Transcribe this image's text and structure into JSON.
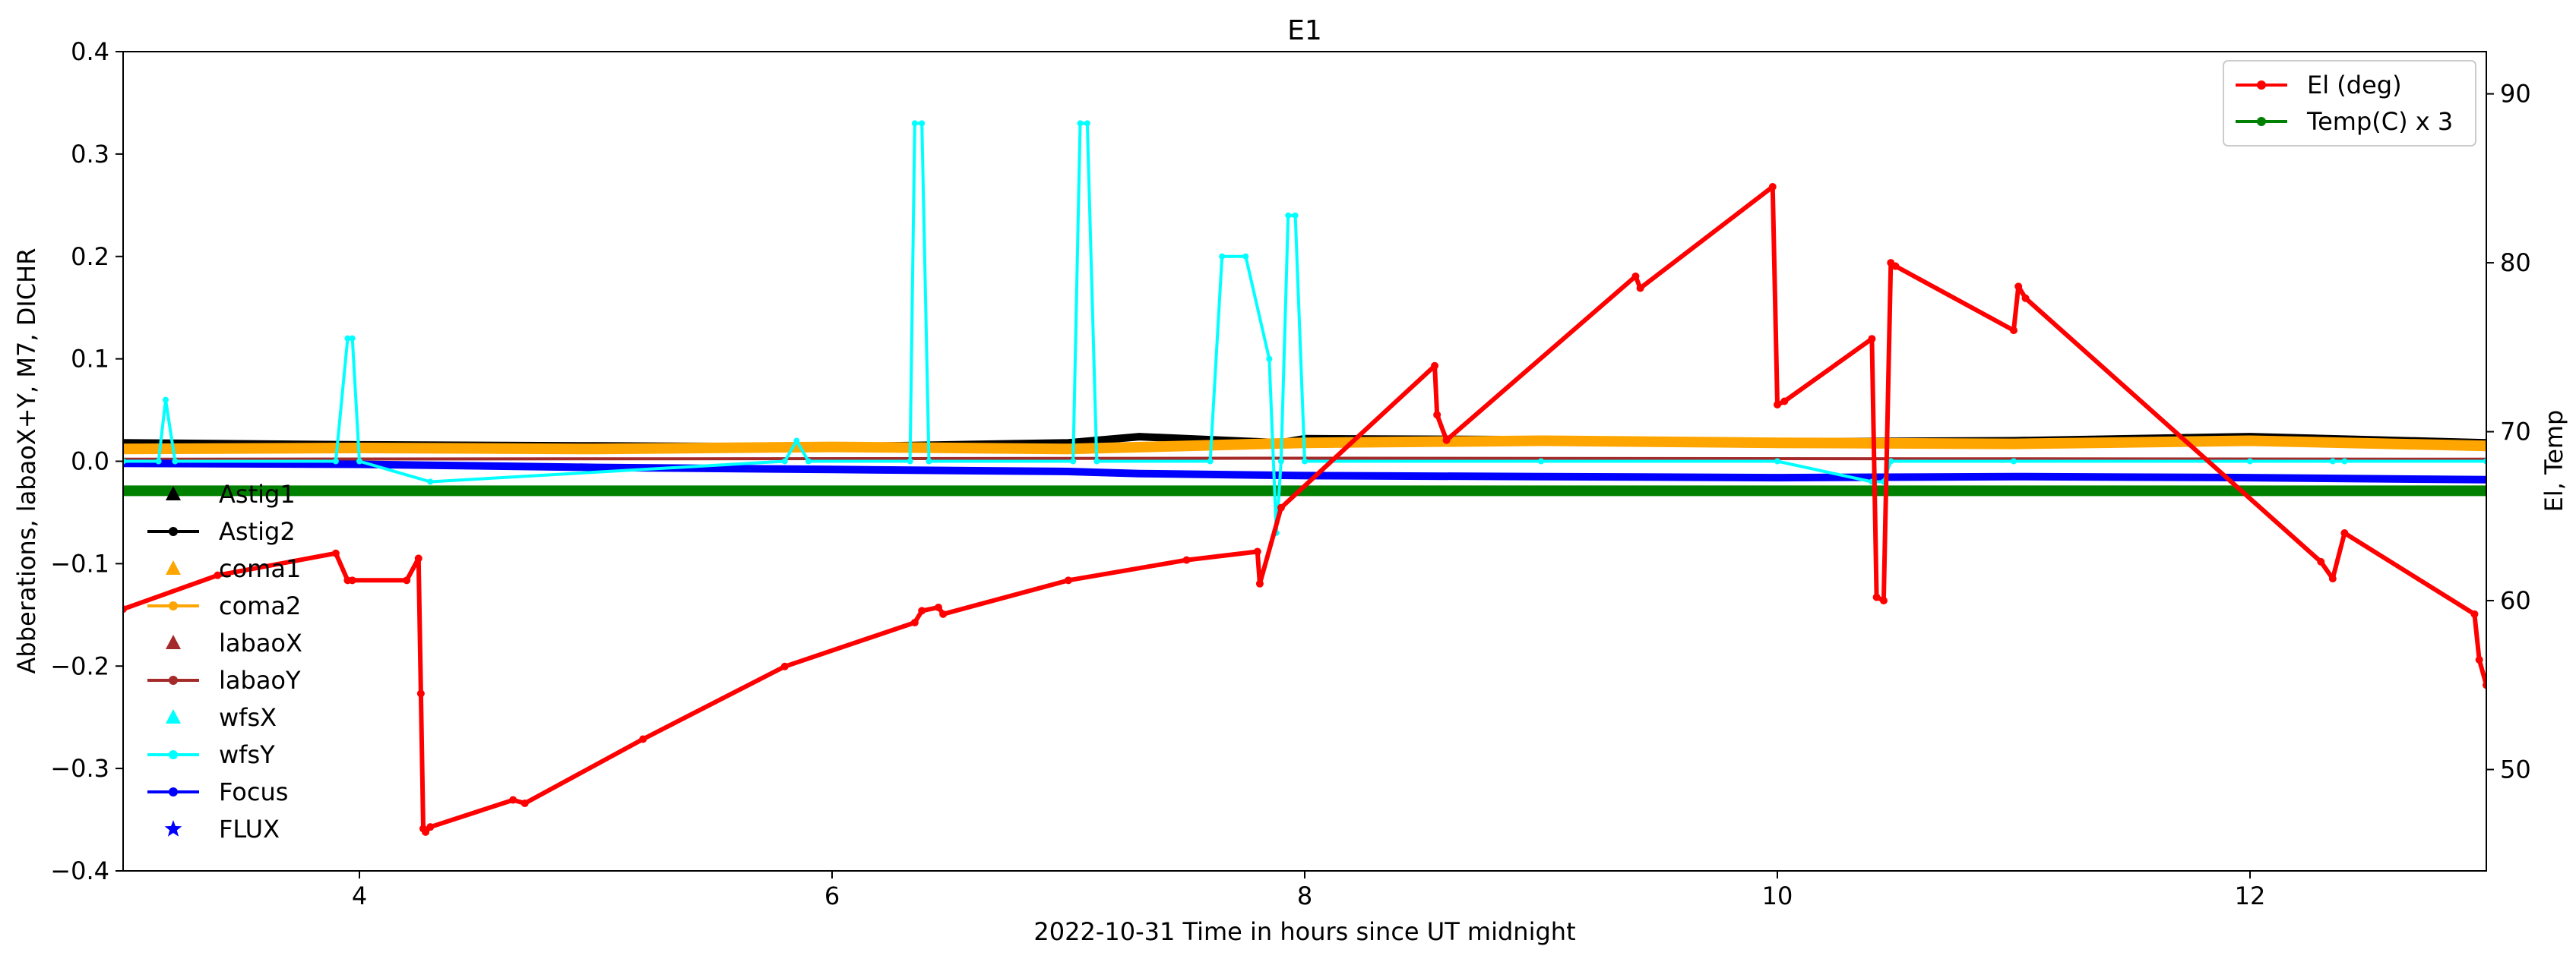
{
  "chart_data": {
    "type": "line",
    "title": "E1",
    "xlabel": "2022-10-31  Time in hours since UT midnight",
    "ylabel_left": "Abberations, labaoX+Y, M7, DICHR",
    "ylabel_right": "El, Temp",
    "xlim": [
      3.0,
      13.0
    ],
    "ylim_left": [
      -0.4,
      0.4
    ],
    "ylim_right": [
      44.0,
      92.5
    ],
    "x_ticks": [
      "4",
      "6",
      "8",
      "10",
      "12"
    ],
    "x_tick_values": [
      4,
      6,
      8,
      10,
      12
    ],
    "y_left_ticks": [
      "0.4",
      "0.3",
      "0.2",
      "0.1",
      "0.0",
      "−0.1",
      "−0.2",
      "−0.3",
      "−0.4"
    ],
    "y_left_tick_values": [
      0.4,
      0.3,
      0.2,
      0.1,
      0.0,
      -0.1,
      -0.2,
      -0.3,
      -0.4
    ],
    "y_right_ticks": [
      "90",
      "80",
      "70",
      "60",
      "50"
    ],
    "y_right_tick_values": [
      90,
      80,
      70,
      60,
      50
    ],
    "grid": false,
    "legend_left": {
      "placement": "left",
      "entries": [
        {
          "label": "Astig1",
          "color": "#000000",
          "marker": "triangle"
        },
        {
          "label": "Astig2",
          "color": "#000000",
          "marker": "line-dot"
        },
        {
          "label": "coma1",
          "color": "#ffa500",
          "marker": "triangle"
        },
        {
          "label": "coma2",
          "color": "#ffa500",
          "marker": "line-dot"
        },
        {
          "label": "labaoX",
          "color": "#a52a2a",
          "marker": "triangle"
        },
        {
          "label": "labaoY",
          "color": "#a52a2a",
          "marker": "line-dot"
        },
        {
          "label": "wfsX",
          "color": "#00ffff",
          "marker": "triangle"
        },
        {
          "label": "wfsY",
          "color": "#00ffff",
          "marker": "line-dot"
        },
        {
          "label": "Focus",
          "color": "#0000ff",
          "marker": "line-dot"
        },
        {
          "label": "FLUX",
          "color": "#0000ff",
          "marker": "star"
        }
      ]
    },
    "legend_right": {
      "placement": "top-right",
      "entries": [
        {
          "label": "El (deg)",
          "color": "#ff0000",
          "marker": "line-dot"
        },
        {
          "label": "Temp(C) x 3",
          "color": "#008000",
          "marker": "line-dot"
        }
      ]
    },
    "series": [
      {
        "name": "El (deg)",
        "axis": "right",
        "color": "#ff0000",
        "x": [
          3.0,
          3.4,
          3.9,
          3.95,
          3.97,
          4.2,
          4.25,
          4.26,
          4.27,
          4.28,
          4.3,
          4.65,
          4.7,
          5.2,
          5.8,
          6.35,
          6.38,
          6.45,
          6.47,
          7.0,
          7.5,
          7.8,
          7.81,
          7.9,
          8.55,
          8.56,
          8.6,
          9.4,
          9.42,
          9.98,
          10.0,
          10.03,
          10.4,
          10.42,
          10.45,
          10.48,
          10.5,
          11.0,
          11.02,
          11.05,
          12.3,
          12.35,
          12.4,
          12.95,
          12.97,
          13.0
        ],
        "y": [
          59.5,
          61.5,
          62.8,
          61.2,
          61.2,
          61.2,
          62.5,
          54.5,
          46.5,
          46.3,
          46.6,
          48.2,
          48.0,
          51.8,
          56.1,
          58.7,
          59.4,
          59.6,
          59.2,
          61.2,
          62.4,
          62.9,
          61.0,
          65.5,
          73.9,
          71.0,
          69.5,
          79.2,
          78.5,
          84.5,
          71.6,
          71.8,
          75.5,
          60.2,
          60.0,
          80.0,
          79.8,
          76.0,
          78.6,
          77.9,
          62.3,
          61.3,
          64.0,
          59.2,
          56.5,
          55.0
        ]
      },
      {
        "name": "Temp(C) x 3",
        "axis": "right",
        "color": "#008000",
        "x": [
          3.0,
          13.0
        ],
        "y": [
          66.5,
          66.5
        ]
      },
      {
        "name": "Astig2",
        "axis": "left",
        "color": "#000000",
        "x": [
          3.0,
          4.0,
          5.0,
          6.0,
          7.0,
          7.3,
          7.9,
          8.0,
          9.0,
          10.0,
          11.0,
          12.0,
          13.0
        ],
        "y": [
          0.018,
          0.016,
          0.015,
          0.014,
          0.018,
          0.024,
          0.018,
          0.022,
          0.021,
          0.019,
          0.02,
          0.024,
          0.018
        ]
      },
      {
        "name": "coma2",
        "axis": "left",
        "color": "#ffa500",
        "x": [
          3.0,
          4.0,
          5.0,
          6.0,
          7.0,
          8.0,
          9.0,
          10.0,
          11.0,
          12.0,
          13.0
        ],
        "y": [
          0.012,
          0.013,
          0.012,
          0.014,
          0.012,
          0.018,
          0.02,
          0.018,
          0.017,
          0.02,
          0.015
        ]
      },
      {
        "name": "labaoY",
        "axis": "left",
        "color": "#a52a2a",
        "x": [
          3.0,
          8.0,
          13.0
        ],
        "y": [
          0.002,
          0.003,
          0.002
        ]
      },
      {
        "name": "wfsY",
        "axis": "left",
        "color": "#00ffff",
        "x": [
          3.0,
          3.15,
          3.18,
          3.22,
          3.9,
          3.95,
          3.97,
          4.0,
          4.3,
          5.8,
          5.85,
          5.9,
          6.33,
          6.35,
          6.38,
          6.41,
          7.02,
          7.05,
          7.08,
          7.12,
          7.6,
          7.65,
          7.75,
          7.85,
          7.88,
          7.9,
          7.93,
          7.96,
          8.0,
          9.0,
          10.0,
          10.4,
          10.45,
          10.48,
          11.0,
          12.0,
          12.35,
          12.4,
          13.0
        ],
        "y": [
          0.0,
          0.0,
          0.06,
          0.0,
          0.0,
          0.12,
          0.12,
          0.0,
          -0.02,
          0.0,
          0.02,
          0.0,
          0.0,
          0.33,
          0.33,
          0.0,
          0.0,
          0.33,
          0.33,
          0.0,
          0.0,
          0.2,
          0.2,
          0.1,
          -0.07,
          0.0,
          0.24,
          0.24,
          0.0,
          0.0,
          0.0,
          -0.02,
          -0.02,
          0.0,
          0.0,
          0.0,
          0.0,
          0.0,
          0.0
        ]
      },
      {
        "name": "Focus",
        "axis": "left",
        "color": "#0000ff",
        "x": [
          3.0,
          4.0,
          5.0,
          6.0,
          7.0,
          7.3,
          8.0,
          9.0,
          10.0,
          11.0,
          12.0,
          13.0
        ],
        "y": [
          -0.002,
          -0.003,
          -0.006,
          -0.008,
          -0.01,
          -0.012,
          -0.014,
          -0.015,
          -0.016,
          -0.015,
          -0.016,
          -0.018
        ]
      }
    ]
  }
}
